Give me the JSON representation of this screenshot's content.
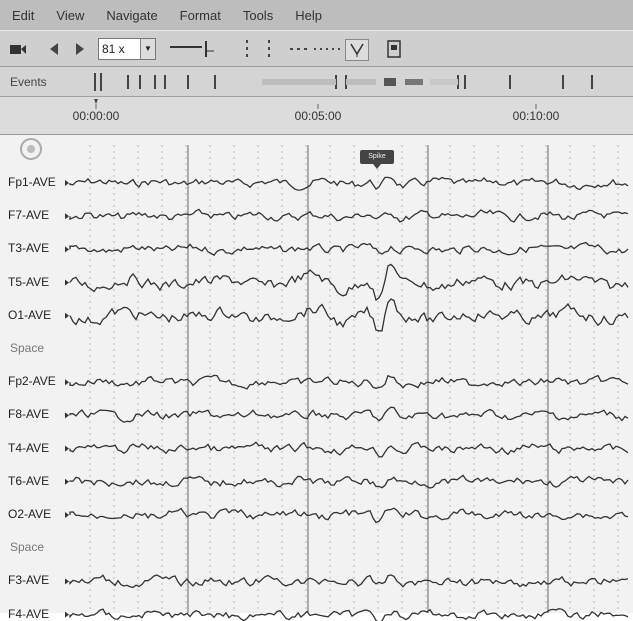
{
  "menu": [
    "Edit",
    "View",
    "Navigate",
    "Format",
    "Tools",
    "Help"
  ],
  "toolbar": {
    "zoom_value": "81 x",
    "icons": [
      "record-icon",
      "prev-icon",
      "next-icon",
      "sensitivity-icon",
      "montage-icon",
      "filter-icon",
      "notch-icon",
      "print-icon"
    ]
  },
  "events": {
    "label": "Events"
  },
  "timeline": {
    "labels": [
      "00:00:00",
      "00:05:00",
      "00:10:00"
    ]
  },
  "marker": {
    "label": "Spike"
  },
  "channels": [
    "Fp1-AVE",
    "F7-AVE",
    "T3-AVE",
    "T5-AVE",
    "O1-AVE",
    "Space",
    "Fp2-AVE",
    "F8-AVE",
    "T4-AVE",
    "T6-AVE",
    "O2-AVE",
    "Space",
    "F3-AVE",
    "F4-AVE"
  ]
}
